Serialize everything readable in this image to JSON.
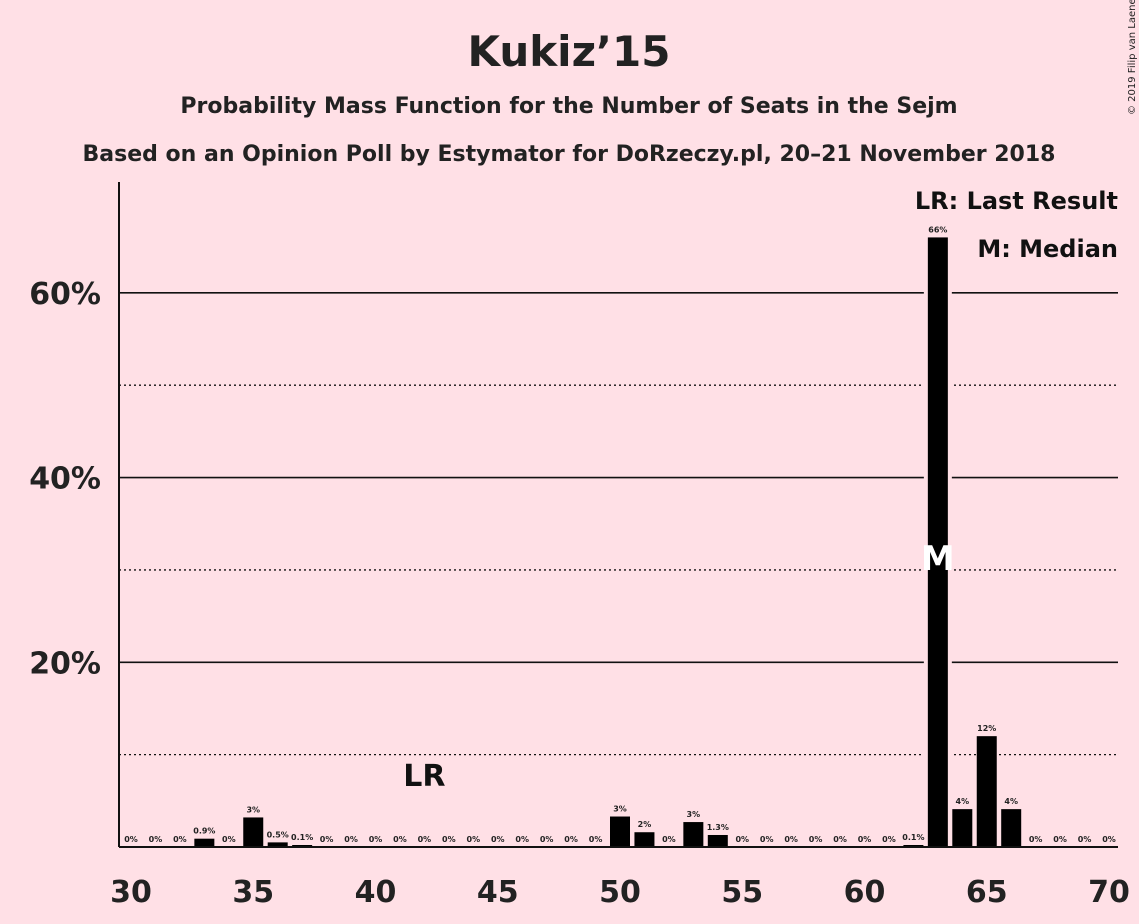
{
  "chart_data": {
    "type": "bar",
    "title": "Kukiz’15",
    "subtitle": "Probability Mass Function for the Number of Seats in the Sejm",
    "subtitle2": "Based on an Opinion Poll by Estymator for DoRzeczy.pl, 20–21 November 2018",
    "copyright": "© 2019 Filip van Laenen",
    "legend": {
      "last_result": "LR: Last Result",
      "median": "M: Median"
    },
    "x": [
      30,
      31,
      32,
      33,
      34,
      35,
      36,
      37,
      38,
      39,
      40,
      41,
      42,
      43,
      44,
      45,
      46,
      47,
      48,
      49,
      50,
      51,
      52,
      53,
      54,
      55,
      56,
      57,
      58,
      59,
      60,
      61,
      62,
      63,
      64,
      65,
      66,
      67,
      68,
      69,
      70
    ],
    "values": [
      0,
      0,
      0,
      0.9,
      0,
      3.2,
      0.5,
      0.1,
      0,
      0,
      0,
      0,
      0,
      0,
      0,
      0,
      0,
      0,
      0,
      0,
      3.3,
      1.6,
      0,
      2.7,
      1.3,
      0,
      0,
      0,
      0,
      0,
      0,
      0,
      0.1,
      66,
      4.1,
      12,
      4.1,
      0,
      0,
      0,
      0
    ],
    "labels": [
      "0%",
      "0%",
      "0%",
      "0.9%",
      "0%",
      "3%",
      "0.5%",
      "0.1%",
      "0%",
      "0%",
      "0%",
      "0%",
      "0%",
      "0%",
      "0%",
      "0%",
      "0%",
      "0%",
      "0%",
      "0%",
      "3%",
      "2%",
      "0%",
      "3%",
      "1.3%",
      "0%",
      "0%",
      "0%",
      "0%",
      "0%",
      "0%",
      "0%",
      "0.1%",
      "66%",
      "4%",
      "12%",
      "4%",
      "0%",
      "0%",
      "0%",
      "0%"
    ],
    "xlim": [
      30,
      70
    ],
    "ylim": [
      0,
      72
    ],
    "x_ticks": [
      30,
      35,
      40,
      45,
      50,
      55,
      60,
      65,
      70
    ],
    "y_ticks": [
      {
        "value": 20,
        "label": "20%"
      },
      {
        "value": 40,
        "label": "40%"
      },
      {
        "value": 60,
        "label": "60%"
      }
    ],
    "minor_gridlines": [
      10,
      30,
      50
    ],
    "last_result": {
      "x": 42,
      "label": "LR"
    },
    "median": {
      "x": 63,
      "label": "M"
    },
    "colors": {
      "background": "#ffe0e6",
      "bar": "#000000",
      "text": "#222222"
    }
  }
}
